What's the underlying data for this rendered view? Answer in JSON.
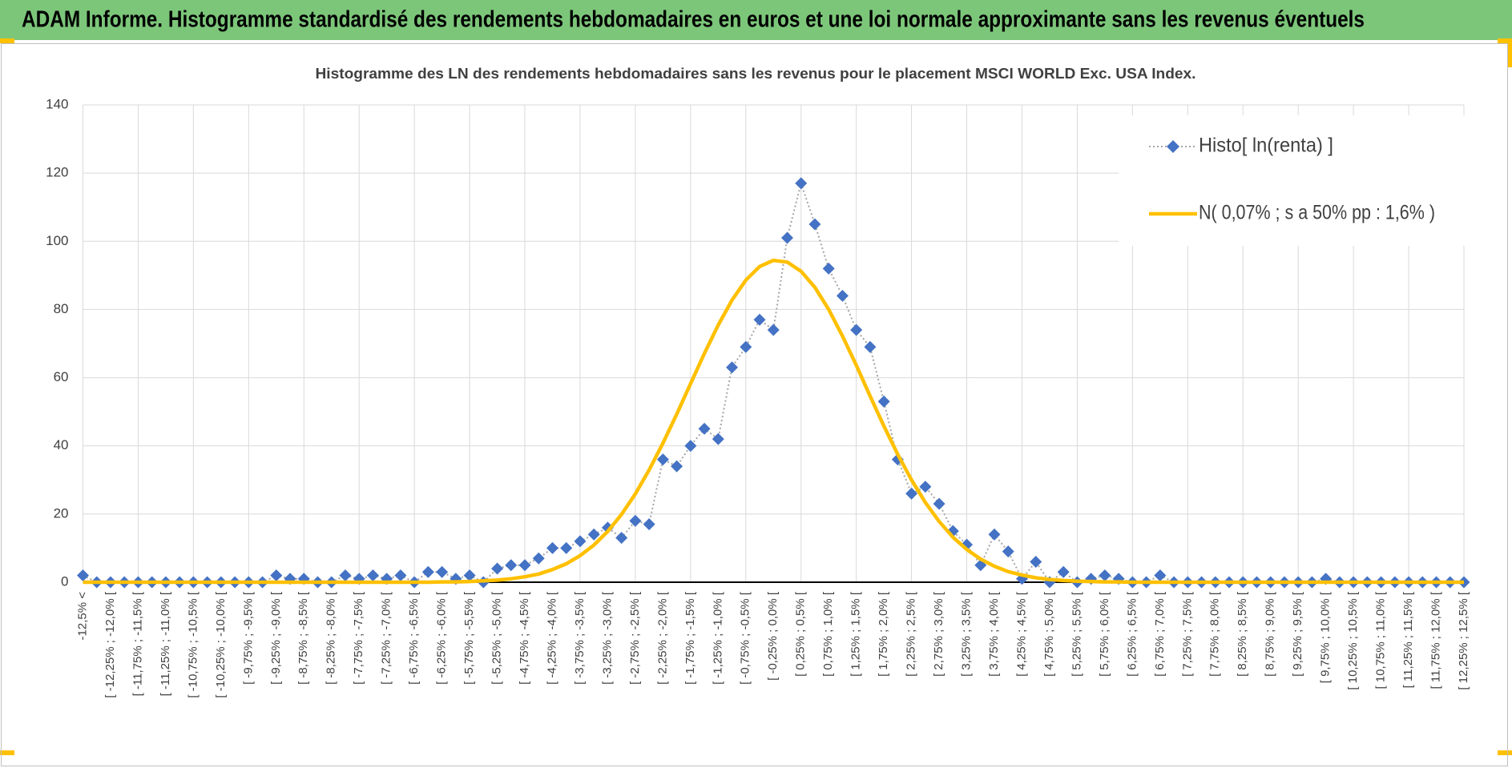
{
  "header": {
    "title": "ADAM Informe. Histogramme standardisé des rendements hebdomadaires en euros et une loi normale approximante sans les revenus éventuels"
  },
  "chart_data": {
    "type": "line",
    "title": "Histogramme des LN des rendements hebdomadaires sans les revenus pour le placement MSCI WORLD Exc. USA Index.",
    "categories": [
      "-12,5% <",
      null,
      "[ -12,25% ; -12,0% [",
      null,
      "[ -11,75% ; -11,5% [",
      null,
      "[ -11,25% ; -11,0% [",
      null,
      "[ -10,75% ; -10,5% [",
      null,
      "[ -10,25% ; -10,0% [",
      null,
      "[ -9,75% ; -9,5% [",
      null,
      "[ -9,25% ; -9,0% [",
      null,
      "[ -8,75% ; -8,5% [",
      null,
      "[ -8,25% ; -8,0% [",
      null,
      "[ -7,75% ; -7,5% [",
      null,
      "[ -7,25% ; -7,0% [",
      null,
      "[ -6,75% ; -6,5% [",
      null,
      "[ -6,25% ; -6,0% [",
      null,
      "[ -5,75% ; -5,5% [",
      null,
      "[ -5,25% ; -5,0% [",
      null,
      "[ -4,75% ; -4,5% [",
      null,
      "[ -4,25% ; -4,0% [",
      null,
      "[ -3,75% ; -3,5% [",
      null,
      "[ -3,25% ; -3,0% [",
      null,
      "[ -2,75% ; -2,5% [",
      null,
      "[ -2,25% ; -2,0% [",
      null,
      "[ -1,75% ; -1,5% [",
      null,
      "[ -1,25% ; -1,0% [",
      null,
      "[ -0,75% ; -0,5% [",
      null,
      "[ -0,25% ; 0,0% [",
      null,
      "[ 0,25% ; 0,5% [",
      null,
      "[ 0,75% ; 1,0% [",
      null,
      "[ 1,25% ; 1,5% [",
      null,
      "[ 1,75% ; 2,0% [",
      null,
      "[ 2,25% ; 2,5% [",
      null,
      "[ 2,75% ; 3,0% [",
      null,
      "[ 3,25% ; 3,5% [",
      null,
      "[ 3,75% ; 4,0% [",
      null,
      "[ 4,25% ; 4,5% [",
      null,
      "[ 4,75% ; 5,0% [",
      null,
      "[ 5,25% ; 5,5% [",
      null,
      "[ 5,75% ; 6,0% [",
      null,
      "[ 6,25% ; 6,5% [",
      null,
      "[ 6,75% ; 7,0% [",
      null,
      "[ 7,25% ; 7,5% [",
      null,
      "[ 7,75% ; 8,0% [",
      null,
      "[ 8,25% ; 8,5% [",
      null,
      "[ 8,75% ; 9,0% [",
      null,
      "[ 9,25% ; 9,5% [",
      null,
      "[ 9,75% ; 10,0% [",
      null,
      "[ 10,25% ; 10,5% [",
      null,
      "[ 10,75% ; 11,0% [",
      null,
      "[ 11,25% ; 11,5% [",
      null,
      "[ 11,75% ; 12,0% [",
      null,
      "[ 12,25% ; 12,5% ["
    ],
    "series": [
      {
        "name": "Histo[ ln(renta) ]",
        "color": "#4472c4",
        "line_color": "#a5a5a5",
        "values": [
          2,
          0,
          0,
          0,
          0,
          0,
          0,
          0,
          0,
          0,
          0,
          0,
          0,
          0,
          2,
          1,
          1,
          0,
          0,
          2,
          1,
          2,
          1,
          2,
          0,
          3,
          3,
          1,
          2,
          0,
          4,
          5,
          5,
          7,
          10,
          10,
          12,
          14,
          16,
          13,
          18,
          17,
          36,
          34,
          40,
          45,
          42,
          63,
          69,
          77,
          74,
          101,
          117,
          105,
          92,
          84,
          74,
          69,
          53,
          36,
          26,
          28,
          23,
          15,
          11,
          5,
          14,
          9,
          1,
          6,
          0,
          3,
          0,
          1,
          2,
          1,
          0,
          0,
          2,
          0,
          0,
          0,
          0,
          0,
          0,
          0,
          0,
          0,
          0,
          0,
          1,
          0,
          0,
          0,
          0,
          0,
          0,
          0,
          0,
          0,
          0
        ]
      },
      {
        "name": "N( 0,07% ; s a 50% pp : 1,6% )",
        "color": "#ffc000",
        "values": [
          0,
          0,
          0,
          0,
          0,
          0,
          0,
          0,
          0,
          0,
          0,
          0,
          0,
          0,
          0,
          0,
          0,
          0,
          0,
          0,
          0,
          0,
          0,
          0,
          0,
          0,
          0.1,
          0.1,
          0.2,
          0.4,
          0.6,
          1.0,
          1.6,
          2.4,
          3.7,
          5.4,
          7.8,
          10.9,
          14.9,
          19.9,
          25.9,
          32.9,
          40.8,
          49.3,
          58.2,
          67.1,
          75.4,
          82.7,
          88.6,
          92.6,
          94.4,
          93.9,
          91.2,
          86.5,
          80.0,
          72.2,
          63.6,
          54.6,
          45.8,
          37.5,
          30.0,
          23.4,
          17.8,
          13.2,
          9.6,
          6.8,
          4.7,
          3.1,
          2.1,
          1.3,
          0.8,
          0.5,
          0.3,
          0.2,
          0.1,
          0.1,
          0,
          0,
          0,
          0,
          0,
          0,
          0,
          0,
          0,
          0,
          0,
          0,
          0,
          0,
          0,
          0,
          0,
          0,
          0,
          0,
          0,
          0,
          0,
          0,
          0
        ]
      }
    ],
    "ylim": [
      0,
      140
    ],
    "yticks": [
      0,
      20,
      40,
      60,
      80,
      100,
      120,
      140
    ],
    "grid": true,
    "legend": "upper right"
  }
}
